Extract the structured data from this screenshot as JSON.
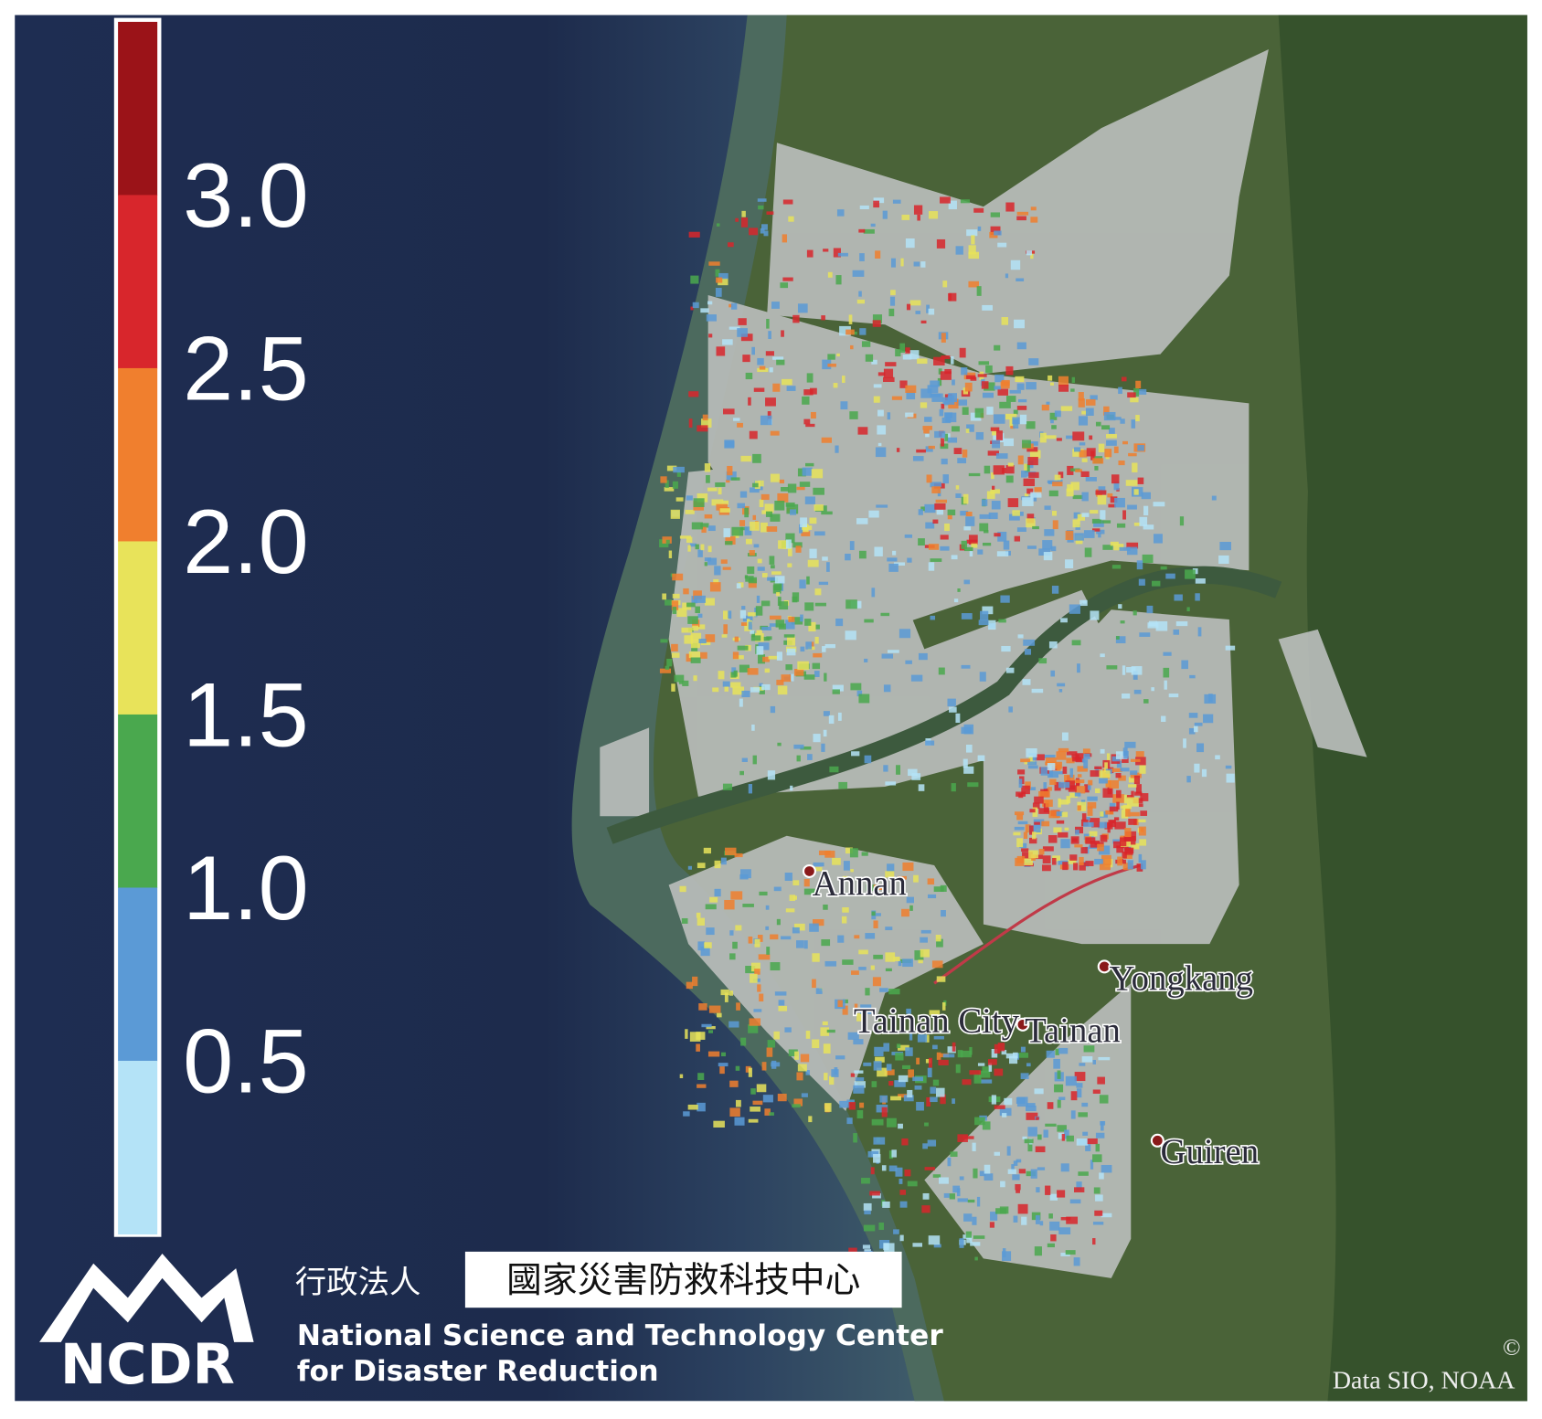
{
  "legend": {
    "ticks": [
      "3.0",
      "2.5",
      "2.0",
      "1.5",
      "1.0",
      "0.5"
    ],
    "colors": [
      "#9b1318",
      "#d8262c",
      "#f07f2e",
      "#e8e35a",
      "#4aa84e",
      "#5b9ad6",
      "#b4e3f7"
    ]
  },
  "places": [
    "Annan",
    "Yongkang",
    "Tainan City",
    "Tainan",
    "Guiren"
  ],
  "logo": {
    "acronym": "NCDR",
    "org_type": "行政法人",
    "name_zh": "國家災害防救科技中心",
    "name_en_1": "National Science and Technology Center",
    "name_en_2": "for Disaster Reduction"
  },
  "attribution": {
    "symbol": "©",
    "text": "Data SIO, NOAA"
  }
}
